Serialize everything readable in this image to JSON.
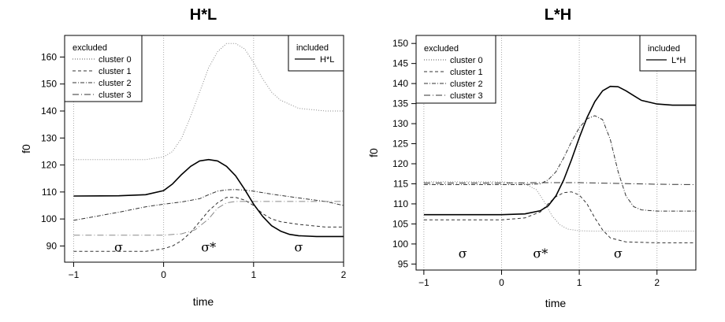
{
  "chart_data": [
    {
      "type": "line",
      "title": "H*L",
      "xlabel": "time",
      "ylabel": "f0",
      "xlim": [
        -1.1,
        2.0
      ],
      "ylim": [
        84,
        168
      ],
      "xticks": [
        -1,
        0,
        1,
        2
      ],
      "yticks": [
        90,
        100,
        110,
        120,
        130,
        140,
        150,
        160
      ],
      "vlines": [
        -1,
        0,
        1,
        2
      ],
      "syllables": [
        {
          "x": -0.5,
          "y": 88,
          "label": "σ"
        },
        {
          "x": 0.5,
          "y": 88,
          "label": "σ*"
        },
        {
          "x": 1.5,
          "y": 88,
          "label": "σ"
        }
      ],
      "legend_excluded": {
        "title": "excluded",
        "entries": [
          "cluster 0",
          "cluster 1",
          "cluster 2",
          "cluster 3"
        ]
      },
      "legend_included": {
        "title": "included",
        "entries": [
          "H*L"
        ]
      },
      "series": [
        {
          "name": "cluster 0",
          "group": "excluded",
          "style": "dotted",
          "color": "#8a8a8a",
          "x": [
            -1,
            -0.5,
            -0.2,
            0,
            0.1,
            0.2,
            0.3,
            0.4,
            0.5,
            0.6,
            0.7,
            0.8,
            0.9,
            1.0,
            1.1,
            1.2,
            1.3,
            1.5,
            1.8,
            2.0
          ],
          "y": [
            122,
            122,
            122,
            123,
            125,
            130,
            138,
            147,
            156,
            162,
            165,
            165,
            163,
            158,
            152,
            147,
            144,
            141,
            140,
            140
          ]
        },
        {
          "name": "cluster 1",
          "group": "excluded",
          "style": "dashed",
          "color": "#333333",
          "x": [
            -1,
            -0.5,
            -0.2,
            0,
            0.1,
            0.2,
            0.3,
            0.4,
            0.5,
            0.6,
            0.7,
            0.8,
            0.9,
            1.0,
            1.1,
            1.2,
            1.3,
            1.5,
            1.8,
            2.0
          ],
          "y": [
            88,
            88,
            88,
            89,
            90,
            92,
            95,
            99,
            103,
            106,
            108,
            108,
            107,
            105,
            102,
            100,
            99,
            98,
            97,
            97
          ]
        },
        {
          "name": "cluster 2",
          "group": "excluded",
          "style": "dashdot",
          "color": "#333333",
          "x": [
            -1,
            -0.5,
            -0.2,
            0,
            0.2,
            0.4,
            0.5,
            0.6,
            0.7,
            0.8,
            0.9,
            1.0,
            1.2,
            1.5,
            1.8,
            2.0
          ],
          "y": [
            99.5,
            102.5,
            104.5,
            105.5,
            106.3,
            107.5,
            109,
            110.3,
            110.8,
            110.9,
            110.7,
            110.3,
            109.2,
            107.8,
            106.5,
            105
          ]
        },
        {
          "name": "cluster 3",
          "group": "excluded",
          "style": "longdash",
          "color": "#8a8a8a",
          "x": [
            -1,
            -0.5,
            0,
            0.2,
            0.35,
            0.5,
            0.6,
            0.7,
            0.8,
            1.0,
            1.2,
            1.5,
            1.8,
            2.0
          ],
          "y": [
            94,
            94,
            94,
            94.5,
            96,
            100,
            104,
            106,
            106.5,
            106.5,
            106.5,
            106.5,
            106.5,
            106.5
          ]
        },
        {
          "name": "H*L",
          "group": "included",
          "style": "solid",
          "color": "#000000",
          "x": [
            -1,
            -0.5,
            -0.2,
            0,
            0.1,
            0.2,
            0.3,
            0.4,
            0.5,
            0.6,
            0.7,
            0.8,
            0.9,
            1.0,
            1.1,
            1.2,
            1.3,
            1.4,
            1.5,
            1.7,
            2.0
          ],
          "y": [
            108.5,
            108.6,
            109,
            110.5,
            113,
            116.5,
            119.5,
            121.5,
            122,
            121.5,
            119.5,
            116,
            111,
            105.5,
            101,
            97.5,
            95.5,
            94.3,
            93.8,
            93.5,
            93.5
          ]
        }
      ]
    },
    {
      "type": "line",
      "title": "L*H",
      "xlabel": "time",
      "ylabel": "f0",
      "xlim": [
        -1.1,
        2.5
      ],
      "ylim": [
        93.5,
        152
      ],
      "xticks": [
        -1,
        0,
        1,
        2
      ],
      "yticks": [
        95,
        100,
        105,
        110,
        115,
        120,
        125,
        130,
        135,
        140,
        145,
        150
      ],
      "vlines": [
        -1,
        0,
        1,
        2
      ],
      "syllables": [
        {
          "x": -0.5,
          "y": 96.5,
          "label": "σ"
        },
        {
          "x": 0.5,
          "y": 96.5,
          "label": "σ*"
        },
        {
          "x": 1.5,
          "y": 96.5,
          "label": "σ"
        }
      ],
      "legend_excluded": {
        "title": "excluded",
        "entries": [
          "cluster 0",
          "cluster 1",
          "cluster 2",
          "cluster 3"
        ]
      },
      "legend_included": {
        "title": "included",
        "entries": [
          "L*H"
        ]
      },
      "series": [
        {
          "name": "cluster 0",
          "group": "excluded",
          "style": "dotted",
          "color": "#8a8a8a",
          "x": [
            -1,
            -0.5,
            0,
            0.3,
            0.45,
            0.55,
            0.65,
            0.75,
            0.85,
            1.0,
            1.2,
            1.5,
            2.0,
            2.5
          ],
          "y": [
            115.5,
            115.5,
            115.5,
            115,
            113.5,
            110.5,
            107,
            104.8,
            103.7,
            103.3,
            103.2,
            103.2,
            103.2,
            103.2
          ]
        },
        {
          "name": "cluster 1",
          "group": "excluded",
          "style": "dashed",
          "color": "#333333",
          "x": [
            -1,
            -0.5,
            0,
            0.3,
            0.5,
            0.6,
            0.7,
            0.8,
            0.9,
            1.0,
            1.1,
            1.2,
            1.3,
            1.4,
            1.6,
            2.0,
            2.5
          ],
          "y": [
            106,
            106,
            106,
            106.5,
            108,
            110,
            111.8,
            112.8,
            113,
            112.2,
            110,
            106.5,
            103.5,
            101.5,
            100.5,
            100.3,
            100.3
          ]
        },
        {
          "name": "cluster 2",
          "group": "excluded",
          "style": "dashdot",
          "color": "#333333",
          "x": [
            -1,
            -0.5,
            0,
            0.3,
            0.5,
            0.6,
            0.7,
            0.8,
            0.9,
            1.0,
            1.1,
            1.2,
            1.3,
            1.4,
            1.5,
            1.6,
            1.7,
            1.8,
            2.0,
            2.5
          ],
          "y": [
            114.8,
            114.8,
            114.8,
            114.8,
            115,
            116,
            118,
            121.5,
            125.5,
            129,
            131.2,
            132,
            131,
            126,
            118,
            112,
            109.3,
            108.5,
            108.2,
            108.2
          ]
        },
        {
          "name": "cluster 3",
          "group": "excluded",
          "style": "longdash",
          "color": "#333333",
          "x": [
            -1,
            0,
            0.5,
            1.0,
            1.5,
            2.0,
            2.5
          ],
          "y": [
            115.2,
            115.2,
            115.3,
            115.3,
            115.1,
            114.9,
            114.8
          ]
        },
        {
          "name": "L*H",
          "group": "included",
          "style": "solid",
          "color": "#000000",
          "x": [
            -1,
            -0.5,
            0,
            0.3,
            0.5,
            0.6,
            0.7,
            0.8,
            0.9,
            1.0,
            1.1,
            1.2,
            1.3,
            1.4,
            1.5,
            1.6,
            1.7,
            1.8,
            2.0,
            2.2,
            2.5
          ],
          "y": [
            107.3,
            107.3,
            107.3,
            107.5,
            108.3,
            109.5,
            112,
            116,
            121,
            126.5,
            131.5,
            135.5,
            138.2,
            139.3,
            139.2,
            138.2,
            137,
            135.8,
            134.9,
            134.6,
            134.6
          ]
        }
      ]
    }
  ]
}
